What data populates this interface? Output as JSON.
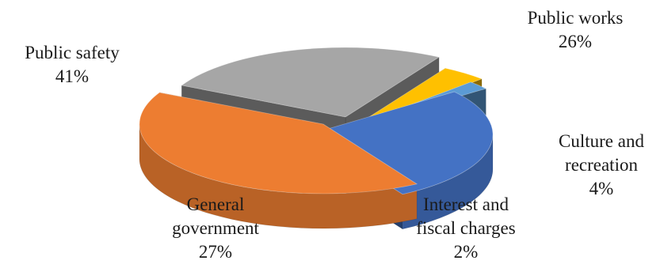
{
  "chart_data": {
    "type": "pie",
    "style": "3d-exploded",
    "title": "",
    "slices": [
      {
        "label": "Public works",
        "label_lines": [
          "Public works"
        ],
        "value": 26,
        "pct_label": "26%",
        "color": "#a6a6a6"
      },
      {
        "label": "Culture and recreation",
        "label_lines": [
          "Culture and",
          "recreation"
        ],
        "value": 4,
        "pct_label": "4%",
        "color": "#ffc000"
      },
      {
        "label": "Interest and fiscal charges",
        "label_lines": [
          "Interest and",
          "fiscal charges"
        ],
        "value": 2,
        "pct_label": "2%",
        "color": "#5b9bd5"
      },
      {
        "label": "General government",
        "label_lines": [
          "General",
          "government"
        ],
        "value": 27,
        "pct_label": "27%",
        "color": "#4472c4"
      },
      {
        "label": "Public safety",
        "label_lines": [
          "Public safety"
        ],
        "value": 41,
        "pct_label": "41%",
        "color": "#ed7d31"
      }
    ]
  }
}
